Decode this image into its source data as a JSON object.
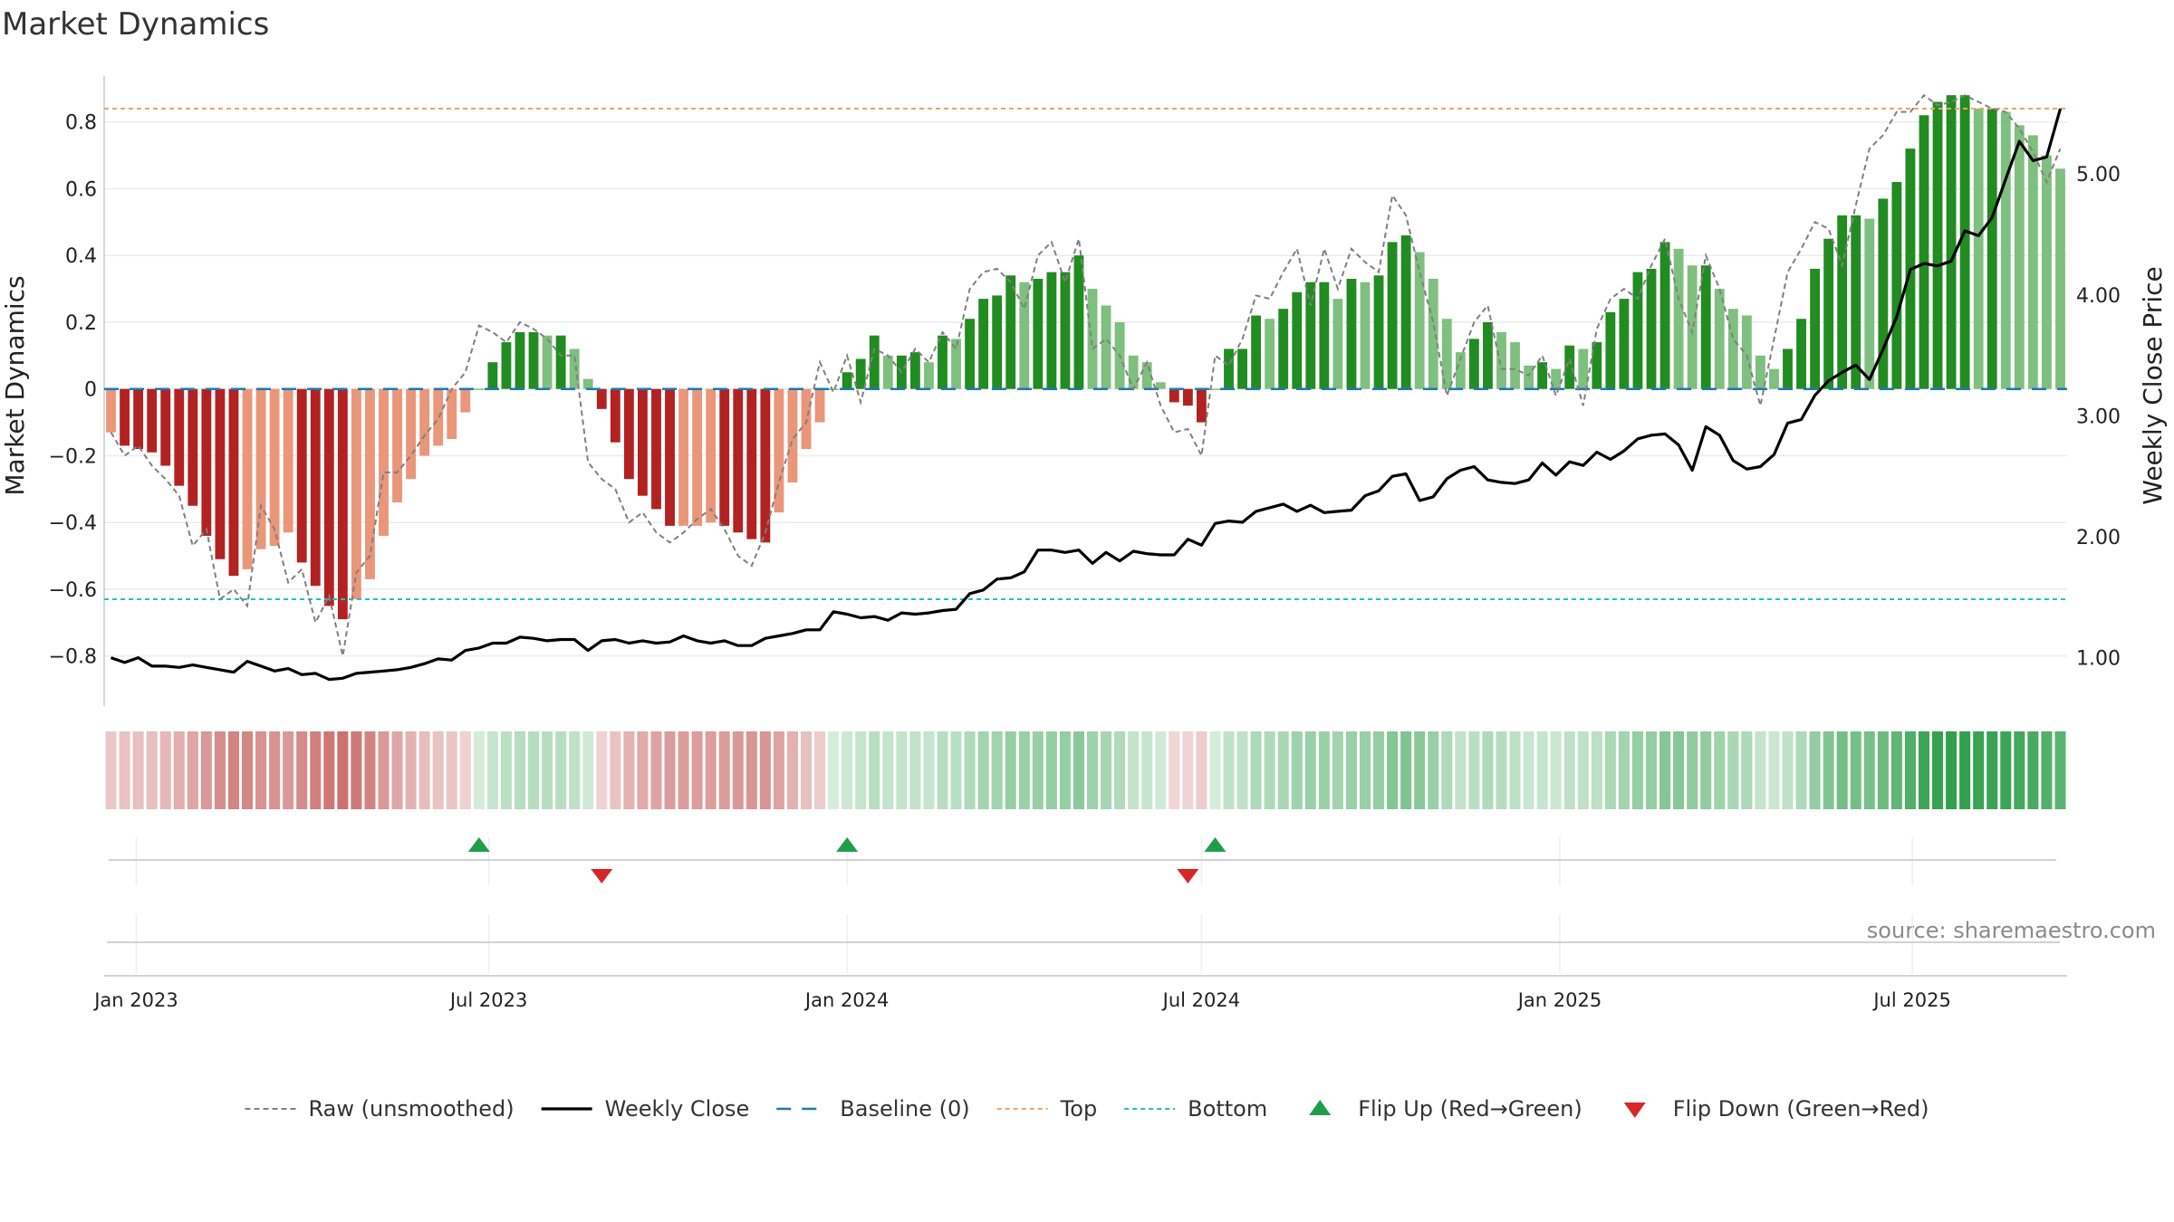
{
  "title": "Market Dynamics",
  "source": "source: sharemaestro.com",
  "colors": {
    "strong_green": "#228b22",
    "light_green": "#7fbf7f",
    "strong_red": "#b22222",
    "light_red": "#e9967a",
    "top_line": "#f4a460",
    "bottom_line": "#20c0c8",
    "baseline": "#1f77b4",
    "close_line": "#000000",
    "raw_line": "#808080",
    "flip_up": "#1e9e4a",
    "flip_down": "#d62728"
  },
  "chart_data": {
    "type": "bar",
    "x_start": "2022-12-19",
    "x_step_days": 7,
    "ylabel": "Market Dynamics",
    "y2label": "Weekly Close Price",
    "ylim": [
      -0.95,
      0.97
    ],
    "y2lim": [
      0.6,
      5.9
    ],
    "yticks": [
      -0.8,
      -0.6,
      -0.4,
      -0.2,
      0,
      0.2,
      0.4,
      0.6,
      0.8
    ],
    "ytick_labels": [
      "−0.8",
      "−0.6",
      "−0.4",
      "−0.2",
      "0",
      "0.2",
      "0.4",
      "0.6",
      "0.8"
    ],
    "y2ticks": [
      1,
      2,
      3,
      4,
      5
    ],
    "y2tick_labels": [
      "1.00",
      "2.00",
      "3.00",
      "4.00",
      "5.00"
    ],
    "xticks": [
      {
        "date": "2023-01-01",
        "label": "Jan 2023"
      },
      {
        "date": "2023-07-01",
        "label": "Jul 2023"
      },
      {
        "date": "2024-01-01",
        "label": "Jan 2024"
      },
      {
        "date": "2024-07-01",
        "label": "Jul 2024"
      },
      {
        "date": "2025-01-01",
        "label": "Jan 2025"
      },
      {
        "date": "2025-07-01",
        "label": "Jul 2025"
      }
    ],
    "top_level": 0.84,
    "bottom_level": -0.63,
    "baseline": 0,
    "grid": true,
    "legend_position": "bottom",
    "dynamics": [
      -0.13,
      -0.17,
      -0.18,
      -0.19,
      -0.23,
      -0.29,
      -0.35,
      -0.44,
      -0.51,
      -0.56,
      -0.54,
      -0.48,
      -0.47,
      -0.43,
      -0.52,
      -0.59,
      -0.65,
      -0.69,
      -0.63,
      -0.57,
      -0.44,
      -0.34,
      -0.27,
      -0.2,
      -0.17,
      -0.15,
      -0.07,
      0,
      0.08,
      0.14,
      0.17,
      0.17,
      0.16,
      0.16,
      0.12,
      0.03,
      -0.06,
      -0.16,
      -0.27,
      -0.32,
      -0.36,
      -0.41,
      -0.41,
      -0.41,
      -0.4,
      -0.41,
      -0.43,
      -0.45,
      -0.46,
      -0.37,
      -0.28,
      -0.18,
      -0.1,
      0,
      0.05,
      0.09,
      0.16,
      0.1,
      0.1,
      0.11,
      0.08,
      0.16,
      0.15,
      0.21,
      0.27,
      0.28,
      0.34,
      0.32,
      0.33,
      0.35,
      0.35,
      0.4,
      0.3,
      0.25,
      0.2,
      0.1,
      0.08,
      0.02,
      -0.04,
      -0.05,
      -0.1,
      0,
      0.12,
      0.12,
      0.22,
      0.21,
      0.24,
      0.29,
      0.32,
      0.32,
      0.27,
      0.33,
      0.32,
      0.34,
      0.44,
      0.46,
      0.41,
      0.33,
      0.21,
      0.11,
      0.15,
      0.2,
      0.17,
      0.14,
      0.07,
      0.08,
      0.06,
      0.13,
      0.12,
      0.14,
      0.23,
      0.27,
      0.35,
      0.36,
      0.44,
      0.42,
      0.37,
      0.37,
      0.3,
      0.24,
      0.22,
      0.1,
      0.06,
      0.12,
      0.21,
      0.36,
      0.45,
      0.52,
      0.52,
      0.51,
      0.57,
      0.62,
      0.72,
      0.82,
      0.86,
      0.88,
      0.88,
      0.84,
      0.84,
      0.83,
      0.79,
      0.76,
      0.7,
      0.66
    ],
    "raw": [
      -0.13,
      -0.2,
      -0.17,
      -0.23,
      -0.27,
      -0.32,
      -0.47,
      -0.42,
      -0.63,
      -0.6,
      -0.65,
      -0.35,
      -0.42,
      -0.58,
      -0.54,
      -0.7,
      -0.62,
      -0.8,
      -0.55,
      -0.5,
      -0.25,
      -0.25,
      -0.2,
      -0.14,
      -0.09,
      0,
      0.05,
      0.19,
      0.17,
      0.14,
      0.2,
      0.18,
      0.15,
      0.1,
      0.1,
      -0.22,
      -0.27,
      -0.3,
      -0.4,
      -0.37,
      -0.43,
      -0.46,
      -0.43,
      -0.39,
      -0.36,
      -0.42,
      -0.5,
      -0.53,
      -0.43,
      -0.28,
      -0.15,
      -0.1,
      0.08,
      -0.01,
      0.1,
      -0.04,
      0.12,
      0.1,
      0.05,
      0.12,
      0.08,
      0.17,
      0.12,
      0.3,
      0.35,
      0.36,
      0.32,
      0.24,
      0.4,
      0.44,
      0.32,
      0.45,
      0.12,
      0.15,
      0.1,
      0,
      0.08,
      -0.05,
      -0.13,
      -0.12,
      -0.2,
      0.1,
      0.07,
      0.15,
      0.28,
      0.27,
      0.35,
      0.42,
      0.25,
      0.42,
      0.3,
      0.42,
      0.38,
      0.35,
      0.58,
      0.52,
      0.35,
      0.2,
      -0.02,
      0.09,
      0.2,
      0.25,
      0.06,
      0.06,
      0.04,
      0.1,
      -0.02,
      0.09,
      -0.05,
      0.18,
      0.27,
      0.3,
      0.27,
      0.37,
      0.45,
      0.27,
      0.17,
      0.4,
      0.3,
      0.15,
      0.1,
      -0.05,
      0.15,
      0.35,
      0.42,
      0.5,
      0.48,
      0.37,
      0.55,
      0.72,
      0.76,
      0.83,
      0.83,
      0.88,
      0.85,
      0.86,
      0.88,
      0.86,
      0.84,
      0.83,
      0.78,
      0.71,
      0.62,
      0.72
    ],
    "close": [
      1.0,
      0.96,
      1.0,
      0.93,
      0.93,
      0.92,
      0.94,
      0.92,
      0.9,
      0.88,
      0.97,
      0.93,
      0.89,
      0.91,
      0.86,
      0.87,
      0.82,
      0.83,
      0.87,
      0.88,
      0.89,
      0.9,
      0.92,
      0.95,
      0.99,
      0.98,
      1.06,
      1.08,
      1.12,
      1.12,
      1.17,
      1.16,
      1.14,
      1.15,
      1.15,
      1.06,
      1.14,
      1.15,
      1.12,
      1.14,
      1.12,
      1.13,
      1.18,
      1.14,
      1.12,
      1.14,
      1.1,
      1.1,
      1.16,
      1.18,
      1.2,
      1.23,
      1.23,
      1.38,
      1.36,
      1.33,
      1.34,
      1.31,
      1.37,
      1.36,
      1.37,
      1.39,
      1.4,
      1.53,
      1.56,
      1.65,
      1.66,
      1.71,
      1.89,
      1.89,
      1.87,
      1.89,
      1.78,
      1.87,
      1.8,
      1.88,
      1.86,
      1.85,
      1.85,
      1.98,
      1.93,
      2.11,
      2.13,
      2.12,
      2.21,
      2.24,
      2.27,
      2.21,
      2.26,
      2.2,
      2.21,
      2.22,
      2.34,
      2.38,
      2.5,
      2.52,
      2.3,
      2.33,
      2.48,
      2.55,
      2.58,
      2.47,
      2.45,
      2.44,
      2.47,
      2.61,
      2.51,
      2.62,
      2.59,
      2.7,
      2.64,
      2.71,
      2.81,
      2.84,
      2.85,
      2.76,
      2.55,
      2.91,
      2.84,
      2.63,
      2.56,
      2.58,
      2.68,
      2.94,
      2.97,
      3.17,
      3.29,
      3.36,
      3.42,
      3.3,
      3.55,
      3.82,
      4.21,
      4.26,
      4.24,
      4.28,
      4.53,
      4.49,
      4.64,
      4.96,
      5.27,
      5.11,
      5.14,
      5.54
    ],
    "flip_up_index": [
      27,
      54,
      81
    ],
    "flip_down_index": [
      36,
      79
    ],
    "legend": [
      {
        "key": "raw",
        "label": "Raw (unsmoothed)"
      },
      {
        "key": "close",
        "label": "Weekly Close"
      },
      {
        "key": "baseline",
        "label": "Baseline (0)"
      },
      {
        "key": "top",
        "label": "Top"
      },
      {
        "key": "bottom",
        "label": "Bottom"
      },
      {
        "key": "flip_up",
        "label": "Flip Up (Red→Green)"
      },
      {
        "key": "flip_down",
        "label": "Flip Down (Green→Red)"
      }
    ]
  }
}
